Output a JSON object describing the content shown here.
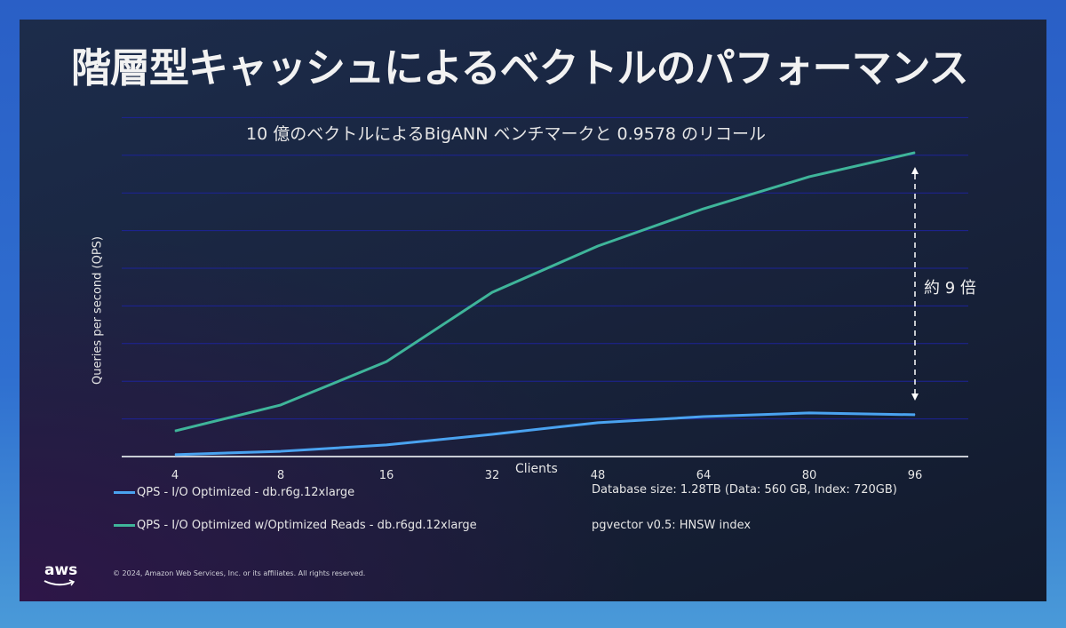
{
  "slide": {
    "title": "階層型キャッシュによるベクトルのパフォーマンス",
    "subtitle": "10 億のベクトルによるBigANN ベンチマークと 0.9578 のリコール",
    "copyright": "© 2024, Amazon Web Services, Inc. or its affiliates. All rights reserved.",
    "logo": "aws",
    "notes": [
      "Database size: 1.28TB (Data: 560 GB, Index: 720GB)",
      "pgvector v0.5: HNSW index"
    ],
    "annotation": "約 9 倍"
  },
  "chart_data": {
    "type": "line",
    "title": "10 億のベクトルによるBigANN ベンチマークと 0.9578 のリコール",
    "xlabel": "Clients",
    "ylabel": "Queries per second (QPS)",
    "categories": [
      "4",
      "8",
      "16",
      "32",
      "48",
      "64",
      "80",
      "96"
    ],
    "ylim": [
      0,
      9
    ],
    "y_units": "relative (gridline units; no tick labels shown)",
    "grid": true,
    "legend_position": "bottom-left",
    "series": [
      {
        "name": "QPS - I/O Optimized - db.r6g.12xlarge",
        "color": "#4aa3f0",
        "values": [
          0.05,
          0.14,
          0.31,
          0.59,
          0.9,
          1.06,
          1.16,
          1.11
        ]
      },
      {
        "name": "QPS - I/O Optimized w/Optimized Reads - db.r6gd.12xlarge",
        "color": "#3fb59a",
        "values": [
          0.68,
          1.37,
          2.52,
          4.36,
          5.59,
          6.58,
          7.43,
          8.07
        ]
      }
    ]
  }
}
